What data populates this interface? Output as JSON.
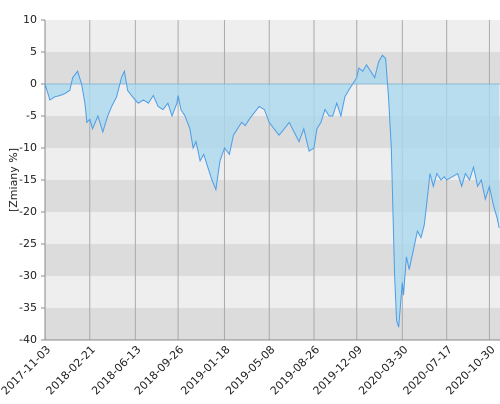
{
  "chart_data": {
    "type": "area",
    "y_label": "[Zmiany %]",
    "color": "#4d9de6",
    "fill": "#a9d8ee",
    "grid": true,
    "x": [
      "2017-11-03",
      "2017-11-15",
      "2017-11-27",
      "2017-12-10",
      "2017-12-22",
      "2018-01-03",
      "2018-01-10",
      "2018-01-22",
      "2018-02-01",
      "2018-02-09",
      "2018-02-14",
      "2018-02-21",
      "2018-02-28",
      "2018-03-13",
      "2018-03-25",
      "2018-04-06",
      "2018-04-16",
      "2018-04-28",
      "2018-05-10",
      "2018-05-17",
      "2018-05-25",
      "2018-06-06",
      "2018-06-13",
      "2018-06-20",
      "2018-07-03",
      "2018-07-15",
      "2018-07-27",
      "2018-08-08",
      "2018-08-20",
      "2018-09-01",
      "2018-09-11",
      "2018-09-23",
      "2018-09-26",
      "2018-10-03",
      "2018-10-13",
      "2018-10-25",
      "2018-11-02",
      "2018-11-09",
      "2018-11-19",
      "2018-11-28",
      "2018-12-08",
      "2018-12-18",
      "2018-12-28",
      "2019-01-07",
      "2019-01-18",
      "2019-01-30",
      "2019-02-09",
      "2019-02-19",
      "2019-03-01",
      "2019-03-10",
      "2019-03-20",
      "2019-04-01",
      "2019-04-13",
      "2019-04-26",
      "2019-05-08",
      "2019-05-20",
      "2019-06-01",
      "2019-06-14",
      "2019-06-26",
      "2019-07-08",
      "2019-07-20",
      "2019-08-01",
      "2019-08-14",
      "2019-08-26",
      "2019-09-02",
      "2019-09-12",
      "2019-09-22",
      "2019-10-02",
      "2019-10-11",
      "2019-10-21",
      "2019-10-31",
      "2019-11-10",
      "2019-11-19",
      "2019-11-29",
      "2019-12-09",
      "2019-12-14",
      "2019-12-24",
      "2020-01-02",
      "2020-01-12",
      "2020-01-22",
      "2020-02-01",
      "2020-02-10",
      "2020-02-18",
      "2020-02-25",
      "2020-03-03",
      "2020-03-11",
      "2020-03-16",
      "2020-03-21",
      "2020-03-30",
      "2020-04-02",
      "2020-04-09",
      "2020-04-16",
      "2020-04-26",
      "2020-05-06",
      "2020-05-15",
      "2020-05-23",
      "2020-05-30",
      "2020-06-06",
      "2020-06-14",
      "2020-06-23",
      "2020-07-03",
      "2020-07-11",
      "2020-07-17",
      "2020-08-13",
      "2020-08-23",
      "2020-09-01",
      "2020-09-11",
      "2020-09-21",
      "2020-10-01",
      "2020-10-10",
      "2020-10-20",
      "2020-10-30",
      "2020-11-09",
      "2020-11-18",
      "2020-11-23"
    ],
    "values": [
      0,
      -2.5,
      -2,
      -1.8,
      -1.5,
      -1,
      1,
      2,
      0,
      -3,
      -6,
      -5.5,
      -7,
      -5,
      -7.5,
      -5,
      -3.5,
      -2,
      1,
      2,
      -1,
      -2,
      -2.5,
      -3,
      -2.5,
      -3,
      -1.8,
      -3.5,
      -4,
      -3,
      -5,
      -3,
      -1.8,
      -4,
      -5,
      -7,
      -10,
      -9,
      -12,
      -11,
      -13,
      -15,
      -16.5,
      -12,
      -10,
      -11,
      -8,
      -7,
      -6,
      -6.5,
      -5.5,
      -4.5,
      -3.5,
      -4,
      -6,
      -7,
      -8,
      -7,
      -6,
      -7.5,
      -9,
      -7,
      -10.5,
      -10,
      -7,
      -6,
      -4,
      -5,
      -5,
      -3,
      -5,
      -2,
      -1,
      0,
      1,
      2.5,
      2,
      3,
      2,
      1,
      3.5,
      4.5,
      4,
      -2,
      -10,
      -30,
      -37,
      -38,
      -31,
      -33,
      -27,
      -29,
      -26,
      -23,
      -24,
      -22,
      -18,
      -14,
      -16,
      -14,
      -15,
      -14.5,
      -15,
      -14,
      -16,
      -14,
      -15,
      -13,
      -16,
      -15,
      -18,
      -16,
      -19,
      -21,
      -22.5
    ],
    "xlim": [
      "2017-11-03",
      "2020-11-25"
    ],
    "xticks": [
      "2017-11-03",
      "2018-02-21",
      "2018-06-13",
      "2018-09-26",
      "2019-01-18",
      "2019-05-08",
      "2019-08-26",
      "2019-12-09",
      "2020-03-30",
      "2020-07-17",
      "2020-10-30"
    ],
    "ylim": [
      -40,
      10
    ],
    "yticks": [
      10,
      5,
      0,
      -5,
      -10,
      -15,
      -20,
      -25,
      -30,
      -35,
      -40
    ]
  }
}
